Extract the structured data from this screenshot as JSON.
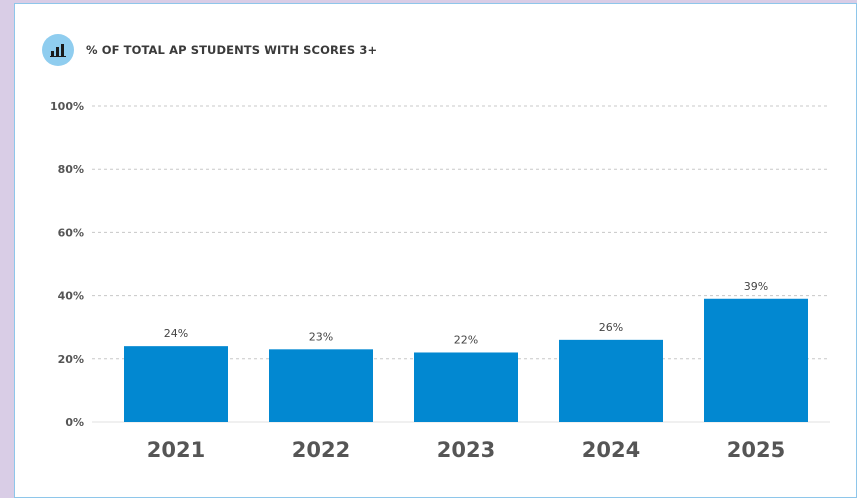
{
  "colors": {
    "bar": "#0288d1",
    "icon_bg": "#8fcdef",
    "grid": "#c8c8c8",
    "border": "#8ec6ea",
    "page_bg": "#d9cde6"
  },
  "header": {
    "icon": "bar-chart-icon",
    "title": "% OF TOTAL AP STUDENTS WITH SCORES 3+"
  },
  "chart_data": {
    "type": "bar",
    "title": "% OF TOTAL AP STUDENTS WITH SCORES 3+",
    "categories": [
      "2021",
      "2022",
      "2023",
      "2024",
      "2025"
    ],
    "values": [
      24,
      23,
      22,
      26,
      39
    ],
    "data_labels": [
      "24%",
      "23%",
      "22%",
      "26%",
      "39%"
    ],
    "yticks": [
      0,
      20,
      40,
      60,
      80,
      100
    ],
    "ytick_labels": [
      "0%",
      "20%",
      "40%",
      "60%",
      "80%",
      "100%"
    ],
    "ylim": [
      0,
      100
    ],
    "grid": true,
    "xlabel": "",
    "ylabel": ""
  }
}
